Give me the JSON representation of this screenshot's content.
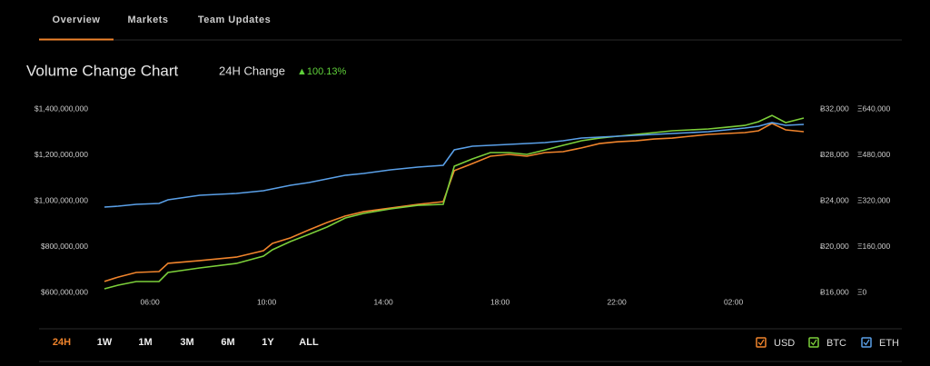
{
  "tabs": [
    "Overview",
    "Markets",
    "Team Updates"
  ],
  "ranges": [
    "24H",
    "1W",
    "1M",
    "3M",
    "6M",
    "1Y",
    "ALL"
  ],
  "chart_data": {
    "type": "line",
    "title": "Volume Change Chart",
    "change_label": "24H Change",
    "change_value": "▲100.13%",
    "x": [
      4.44,
      4.91,
      5.53,
      6.31,
      6.62,
      7.71,
      8.96,
      9.89,
      10.2,
      10.82,
      11.45,
      12.07,
      12.69,
      13.32,
      14.25,
      15.18,
      16.05,
      16.43,
      17.05,
      17.67,
      18.3,
      18.92,
      19.54,
      20.16,
      20.79,
      21.41,
      22.03,
      22.65,
      23.28,
      23.9,
      24.52,
      25.14,
      25.77,
      26.39,
      26.86,
      27.32,
      27.79,
      28.41
    ],
    "xlim": [
      4.44,
      28.41
    ],
    "xticks": [
      {
        "value": 6,
        "label": "06:00"
      },
      {
        "value": 10,
        "label": "10:00"
      },
      {
        "value": 14,
        "label": "14:00"
      },
      {
        "value": 18,
        "label": "18:00"
      },
      {
        "value": 22,
        "label": "22:00"
      },
      {
        "value": 26,
        "label": "02:00"
      }
    ],
    "ylim": [
      600000000,
      1400000000
    ],
    "yticks": [
      {
        "value": 600000000,
        "label": "$600,000,000"
      },
      {
        "value": 800000000,
        "label": "$800,000,000"
      },
      {
        "value": 1000000000,
        "label": "$1,000,000,000"
      },
      {
        "value": 1200000000,
        "label": "$1,200,000,000"
      },
      {
        "value": 1400000000,
        "label": "$1,400,000,000"
      }
    ],
    "y2lim": [
      16000,
      32000
    ],
    "y2ticks": [
      {
        "value": 16000,
        "label": "Ƀ16,000"
      },
      {
        "value": 20000,
        "label": "Ƀ20,000"
      },
      {
        "value": 24000,
        "label": "Ƀ24,000"
      },
      {
        "value": 28000,
        "label": "Ƀ28,000"
      },
      {
        "value": 32000,
        "label": "Ƀ32,000"
      }
    ],
    "y3lim": [
      0,
      640000
    ],
    "y3ticks": [
      {
        "value": 0,
        "label": "Ξ0"
      },
      {
        "value": 160000,
        "label": "Ξ160,000"
      },
      {
        "value": 320000,
        "label": "Ξ320,000"
      },
      {
        "value": 480000,
        "label": "Ξ480,000"
      },
      {
        "value": 640000,
        "label": "Ξ640,000"
      }
    ],
    "series": [
      {
        "name": "USD",
        "color": "#f0842c",
        "values": [
          648000000,
          667000000,
          687000000,
          691000000,
          727000000,
          739000000,
          754000000,
          782000000,
          814000000,
          838000000,
          873000000,
          905000000,
          933000000,
          952000000,
          968000000,
          984000000,
          996000000,
          1131000000,
          1162000000,
          1194000000,
          1202000000,
          1194000000,
          1210000000,
          1214000000,
          1230000000,
          1249000000,
          1257000000,
          1261000000,
          1269000000,
          1273000000,
          1281000000,
          1289000000,
          1293000000,
          1297000000,
          1305000000,
          1337000000,
          1309000000,
          1301000000
        ]
      },
      {
        "name": "BTC",
        "color": "#7ccf3a",
        "axis": "y2",
        "values": [
          16320,
          16630,
          16950,
          16950,
          17740,
          18140,
          18530,
          19170,
          19720,
          20440,
          21070,
          21700,
          22490,
          22890,
          23290,
          23600,
          23680,
          27010,
          27640,
          28200,
          28200,
          28040,
          28430,
          28830,
          29230,
          29460,
          29620,
          29780,
          29940,
          30100,
          30180,
          30260,
          30410,
          30570,
          30890,
          31440,
          30810,
          31210
        ]
      },
      {
        "name": "ETH",
        "color": "#5aa0e8",
        "axis": "y3",
        "values": [
          297800,
          301000,
          307300,
          310500,
          323200,
          339000,
          345300,
          354900,
          361200,
          373900,
          383400,
          396000,
          408700,
          415100,
          427700,
          437200,
          443600,
          497400,
          510100,
          513300,
          516400,
          519600,
          522800,
          529100,
          538600,
          541800,
          545000,
          548100,
          551300,
          554500,
          557600,
          560800,
          567100,
          573500,
          579800,
          592500,
          583000,
          586100
        ]
      }
    ]
  }
}
